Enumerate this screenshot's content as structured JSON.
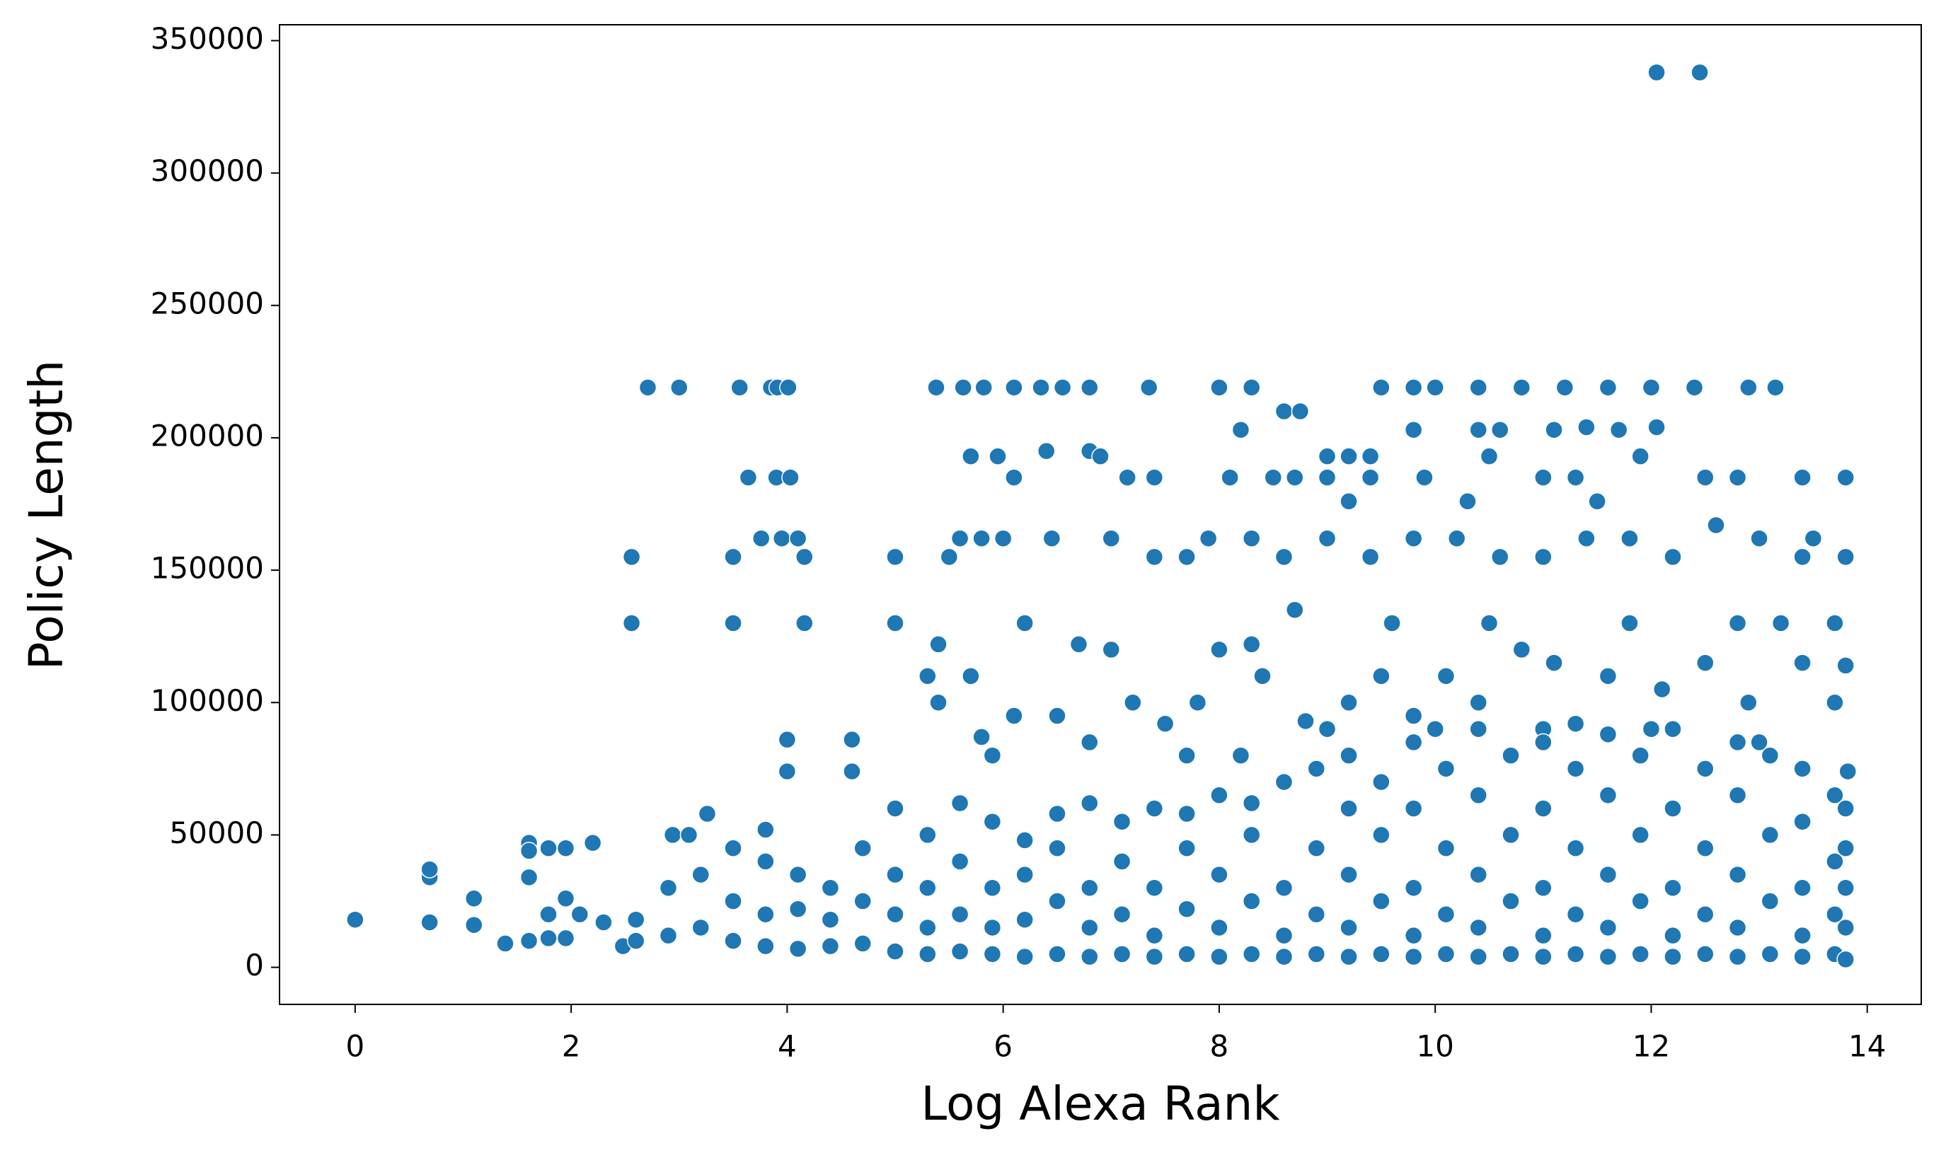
{
  "chart_data": {
    "type": "scatter",
    "xlabel": "Log Alexa Rank",
    "ylabel": "Policy Length",
    "color": "#1f77b4",
    "xlim": [
      -0.7,
      14.5
    ],
    "ylim": [
      -14000,
      356000
    ],
    "xticks": [
      0,
      2,
      4,
      6,
      8,
      10,
      12,
      14
    ],
    "yticks": [
      0,
      50000,
      100000,
      150000,
      200000,
      250000,
      300000,
      350000
    ],
    "x": [
      0,
      0.69,
      0.69,
      0.69,
      1.1,
      1.1,
      1.39,
      1.61,
      1.61,
      1.61,
      1.61,
      1.79,
      1.79,
      1.79,
      1.95,
      1.95,
      1.95,
      2.2,
      2.08,
      2.3,
      2.48,
      2.56,
      2.56,
      2.71,
      3.0,
      2.94,
      3.09,
      3.26,
      3.5,
      3.5,
      3.56,
      3.64,
      3.76,
      3.85,
      3.91,
      4.01,
      3.9,
      4.03,
      3.95,
      4.1,
      4.16,
      4.16,
      4.0,
      4.0,
      4.6,
      4.6,
      5.0,
      5.0,
      5.38,
      5.63,
      5.82,
      6.1,
      6.35,
      6.55,
      6.8,
      7.35,
      8.0,
      8.3,
      9.5,
      9.8,
      10.0,
      10.4,
      10.8,
      11.2,
      11.6,
      12.0,
      12.4,
      12.9,
      13.15,
      12.05,
      12.45,
      5.5,
      5.6,
      5.8,
      6.0,
      5.7,
      5.95,
      6.1,
      6.45,
      6.4,
      6.8,
      6.9,
      7.15,
      7.4,
      7.0,
      7.4,
      7.7,
      7.9,
      8.2,
      8.1,
      8.5,
      8.7,
      8.6,
      8.75,
      9.0,
      9.2,
      9.4,
      9.2,
      9.0,
      9.4,
      9.8,
      9.9,
      10.4,
      10.6,
      10.3,
      10.5,
      11.0,
      11.1,
      11.3,
      11.4,
      11.5,
      11.7,
      12.05,
      11.9,
      12.5,
      12.8,
      13.4,
      13.8,
      12.6,
      13.0,
      13.5,
      13.8,
      12.2,
      8.3,
      8.6,
      9.0,
      9.4,
      9.8,
      10.2,
      10.6,
      11.0,
      11.4,
      11.8,
      13.4,
      12.8,
      13.2,
      13.7,
      11.8,
      10.5,
      9.6,
      8.7,
      8.0,
      8.3,
      7.0,
      6.7,
      6.2,
      5.4,
      5.3,
      5.4,
      5.7,
      6.1,
      6.5,
      6.8,
      7.2,
      7.5,
      7.8,
      8.4,
      8.8,
      9.2,
      9.5,
      9.8,
      10.1,
      10.4,
      10.8,
      11.1,
      11.6,
      12.1,
      12.5,
      12.9,
      13.4,
      13.7,
      13.8,
      13.82,
      7.7,
      8.2,
      9.0,
      10.0,
      11.0,
      12.0,
      13.0,
      5.8,
      5.9,
      2.6,
      2.6,
      2.9,
      2.9,
      3.2,
      3.2,
      3.5,
      3.5,
      3.5,
      3.8,
      3.8,
      3.8,
      3.8,
      4.1,
      4.1,
      4.1,
      4.4,
      4.4,
      4.4,
      4.7,
      4.7,
      4.7,
      5.0,
      5.0,
      5.0,
      5.0,
      5.3,
      5.3,
      5.3,
      5.3,
      5.6,
      5.6,
      5.6,
      5.6,
      5.9,
      5.9,
      5.9,
      5.9,
      6.2,
      6.2,
      6.2,
      6.2,
      6.5,
      6.5,
      6.5,
      6.5,
      6.8,
      6.8,
      6.8,
      6.8,
      7.1,
      7.1,
      7.1,
      7.1,
      7.4,
      7.4,
      7.4,
      7.4,
      7.7,
      7.7,
      7.7,
      7.7,
      8.0,
      8.0,
      8.0,
      8.0,
      8.3,
      8.3,
      8.3,
      8.3,
      8.6,
      8.6,
      8.6,
      8.6,
      8.9,
      8.9,
      8.9,
      8.9,
      9.2,
      9.2,
      9.2,
      9.2,
      9.2,
      9.5,
      9.5,
      9.5,
      9.5,
      9.8,
      9.8,
      9.8,
      9.8,
      9.8,
      10.1,
      10.1,
      10.1,
      10.1,
      10.4,
      10.4,
      10.4,
      10.4,
      10.4,
      10.7,
      10.7,
      10.7,
      10.7,
      11.0,
      11.0,
      11.0,
      11.0,
      11.0,
      11.3,
      11.3,
      11.3,
      11.3,
      11.3,
      11.6,
      11.6,
      11.6,
      11.6,
      11.6,
      11.9,
      11.9,
      11.9,
      11.9,
      12.2,
      12.2,
      12.2,
      12.2,
      12.2,
      12.5,
      12.5,
      12.5,
      12.5,
      12.8,
      12.8,
      12.8,
      12.8,
      12.8,
      13.1,
      13.1,
      13.1,
      13.1,
      13.4,
      13.4,
      13.4,
      13.4,
      13.4,
      13.7,
      13.7,
      13.7,
      13.7,
      13.8,
      13.8,
      13.8,
      13.8,
      13.8
    ],
    "values": [
      18000,
      34000,
      37000,
      17000,
      26000,
      16000,
      9000,
      47000,
      44000,
      34000,
      10000,
      45000,
      20000,
      11000,
      45000,
      26000,
      11000,
      47000,
      20000,
      17000,
      8000,
      155000,
      130000,
      219000,
      219000,
      50000,
      50000,
      58000,
      155000,
      130000,
      219000,
      185000,
      162000,
      219000,
      219000,
      219000,
      185000,
      185000,
      162000,
      162000,
      155000,
      130000,
      86000,
      74000,
      86000,
      74000,
      155000,
      130000,
      219000,
      219000,
      219000,
      219000,
      219000,
      219000,
      219000,
      219000,
      219000,
      219000,
      219000,
      219000,
      219000,
      219000,
      219000,
      219000,
      219000,
      219000,
      219000,
      219000,
      219000,
      338000,
      338000,
      155000,
      162000,
      162000,
      162000,
      193000,
      193000,
      185000,
      162000,
      195000,
      195000,
      193000,
      185000,
      185000,
      162000,
      155000,
      155000,
      162000,
      203000,
      185000,
      185000,
      185000,
      210000,
      210000,
      193000,
      193000,
      193000,
      176000,
      185000,
      185000,
      203000,
      185000,
      203000,
      203000,
      176000,
      193000,
      185000,
      203000,
      185000,
      204000,
      176000,
      203000,
      204000,
      193000,
      185000,
      185000,
      185000,
      185000,
      167000,
      162000,
      162000,
      155000,
      155000,
      162000,
      155000,
      162000,
      155000,
      162000,
      162000,
      155000,
      155000,
      162000,
      162000,
      155000,
      130000,
      130000,
      130000,
      130000,
      130000,
      130000,
      135000,
      120000,
      122000,
      120000,
      122000,
      130000,
      122000,
      110000,
      100000,
      110000,
      95000,
      95000,
      85000,
      100000,
      92000,
      100000,
      110000,
      93000,
      100000,
      110000,
      95000,
      110000,
      100000,
      120000,
      115000,
      110000,
      105000,
      115000,
      100000,
      115000,
      100000,
      114000,
      74000,
      80000,
      80000,
      90000,
      90000,
      90000,
      90000,
      85000,
      87000,
      80000,
      10000,
      18000,
      12000,
      30000,
      15000,
      35000,
      10000,
      25000,
      45000,
      8000,
      20000,
      40000,
      52000,
      7000,
      22000,
      35000,
      8000,
      18000,
      30000,
      9000,
      25000,
      45000,
      6000,
      20000,
      35000,
      60000,
      5000,
      15000,
      30000,
      50000,
      6000,
      20000,
      40000,
      62000,
      5000,
      15000,
      30000,
      55000,
      4000,
      18000,
      35000,
      48000,
      5000,
      25000,
      45000,
      58000,
      4000,
      15000,
      30000,
      62000,
      5000,
      20000,
      40000,
      55000,
      4000,
      12000,
      30000,
      60000,
      5000,
      22000,
      45000,
      58000,
      4000,
      15000,
      35000,
      65000,
      5000,
      25000,
      50000,
      62000,
      4000,
      12000,
      30000,
      70000,
      5000,
      20000,
      45000,
      75000,
      4000,
      15000,
      35000,
      60000,
      80000,
      5000,
      25000,
      50000,
      70000,
      4000,
      12000,
      30000,
      60000,
      85000,
      5000,
      20000,
      45000,
      75000,
      4000,
      15000,
      35000,
      65000,
      90000,
      5000,
      25000,
      50000,
      80000,
      4000,
      12000,
      30000,
      60000,
      85000,
      5000,
      20000,
      45000,
      75000,
      92000,
      4000,
      15000,
      35000,
      65000,
      88000,
      5000,
      25000,
      50000,
      80000,
      4000,
      12000,
      30000,
      60000,
      90000,
      5000,
      20000,
      45000,
      75000,
      4000,
      15000,
      35000,
      65000,
      85000,
      5000,
      25000,
      50000,
      80000,
      4000,
      12000,
      30000,
      55000,
      75000,
      5000,
      20000,
      40000,
      65000,
      3000,
      15000,
      30000,
      45000,
      60000
    ]
  }
}
